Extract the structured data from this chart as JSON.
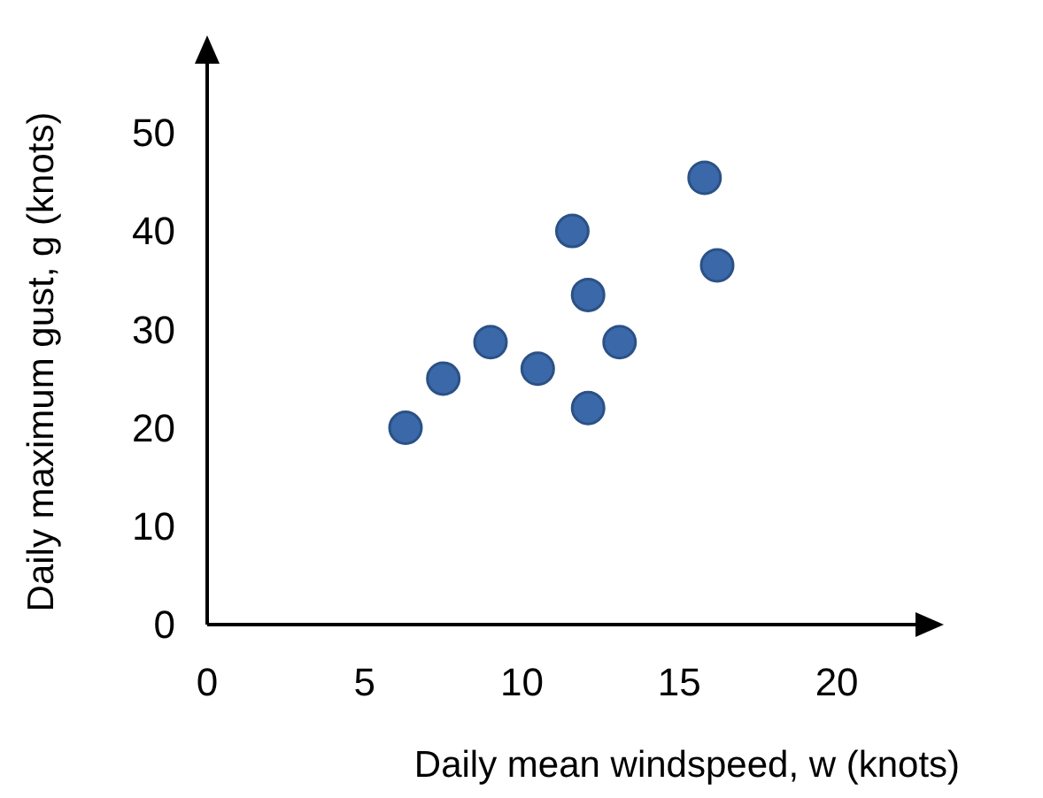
{
  "chart_data": {
    "type": "scatter",
    "xlabel": "Daily mean windspeed, w (knots)",
    "ylabel": "Daily maximum gust, g (knots)",
    "x": [
      6.3,
      7.5,
      9.0,
      10.5,
      11.6,
      12.1,
      12.1,
      13.1,
      15.8,
      16.2
    ],
    "series": [
      {
        "color": "#3a68a8",
        "values": [
          20,
          25,
          28.7,
          26,
          40,
          33.5,
          22,
          28.7,
          45.4,
          36.5
        ]
      }
    ],
    "xlim": [
      0,
      22.5
    ],
    "ylim": [
      0,
      57
    ],
    "xticks": [
      0,
      5,
      10,
      15,
      20
    ],
    "yticks": [
      0,
      10,
      20,
      30,
      40,
      50
    ],
    "grid": false,
    "marker": "circle"
  }
}
